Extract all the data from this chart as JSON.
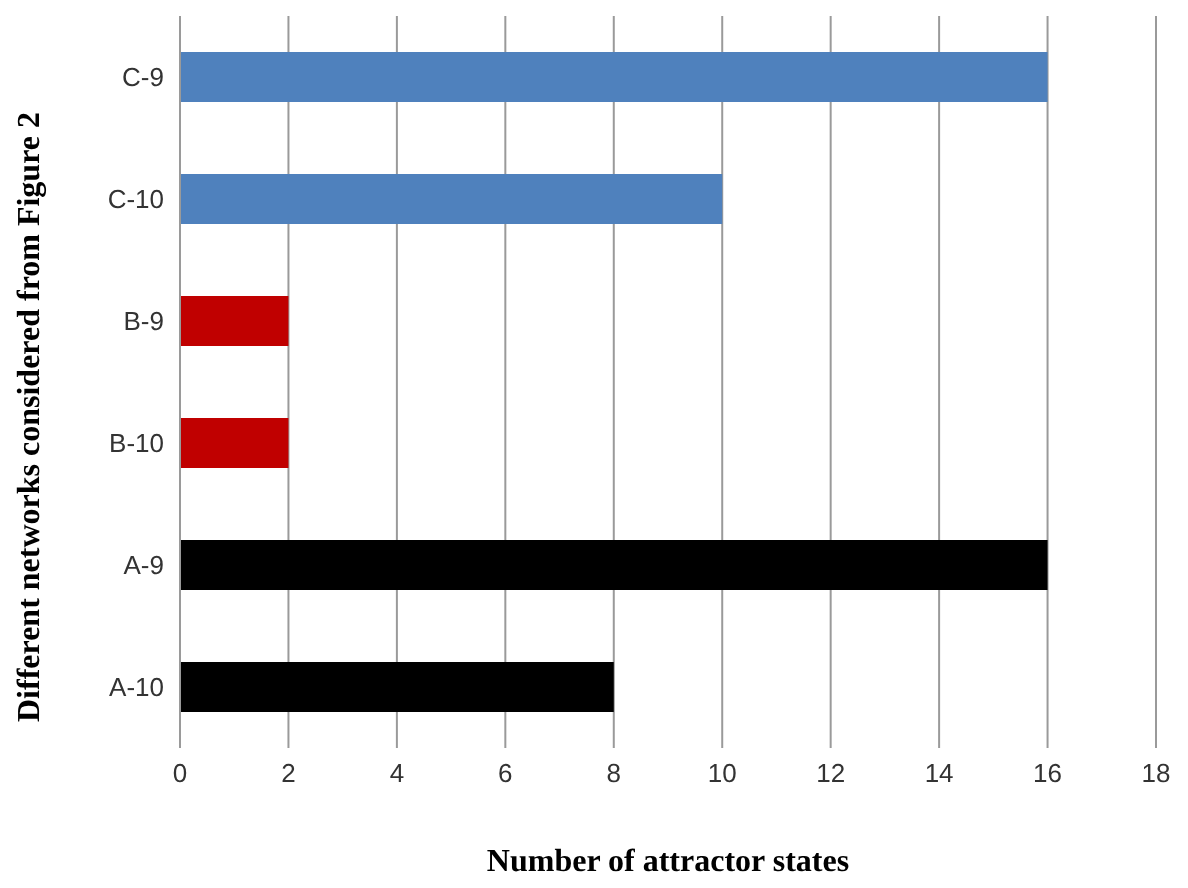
{
  "chart_data": {
    "type": "bar",
    "orientation": "horizontal",
    "xlabel": "Number of attractor states",
    "ylabel": "Different networks considered from Figure 2",
    "categories": [
      "C-9",
      "C-10",
      "B-9",
      "B-10",
      "A-9",
      "A-10"
    ],
    "values": [
      16,
      10,
      2,
      2,
      16,
      8
    ],
    "colors": [
      "#4f81bd",
      "#4f81bd",
      "#c00000",
      "#c00000",
      "#000000",
      "#000000"
    ],
    "xlim": [
      0,
      18
    ],
    "xticks": [
      0,
      2,
      4,
      6,
      8,
      10,
      12,
      14,
      16,
      18
    ],
    "grid": "x"
  }
}
